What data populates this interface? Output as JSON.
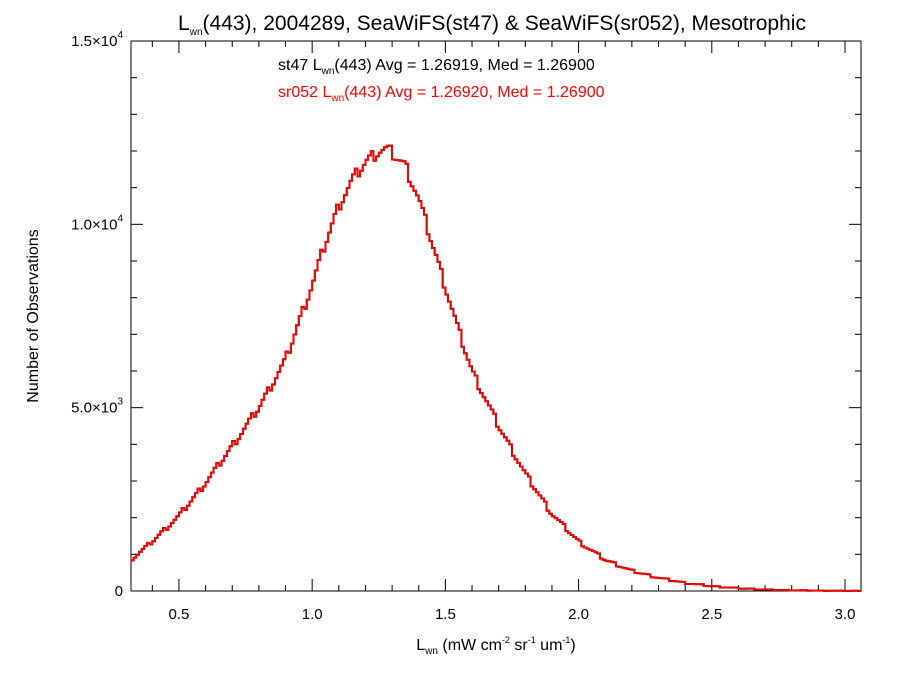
{
  "chart_data": {
    "type": "line",
    "style": "histogram-step",
    "title": {
      "main": "L",
      "main_sub": "wn",
      "rest": "(443), 2004289, SeaWiFS(st47) & SeaWiFS(sr052), Mesotrophic"
    },
    "xlabel": {
      "main": "L",
      "main_sub": "wn",
      "p1": " (mW cm",
      "sup1": "-2",
      "p2": " sr",
      "sup2": "-1",
      "p3": " um",
      "sup3": "-1",
      "p4": ")"
    },
    "ylabel": "Number of Observations",
    "xlim": [
      0.32,
      3.06
    ],
    "ylim": [
      0,
      15000
    ],
    "grid": false,
    "x_ticks": [
      {
        "value": 0.5,
        "label": "0.5"
      },
      {
        "value": 1.0,
        "label": "1.0"
      },
      {
        "value": 1.5,
        "label": "1.5"
      },
      {
        "value": 2.0,
        "label": "2.0"
      },
      {
        "value": 2.5,
        "label": "2.5"
      },
      {
        "value": 3.0,
        "label": "3.0"
      }
    ],
    "y_ticks": [
      {
        "value": 0,
        "mant": "0",
        "exp": ""
      },
      {
        "value": 5000,
        "mant": "5.0×10",
        "exp": "3"
      },
      {
        "value": 10000,
        "mant": "1.0×10",
        "exp": "4"
      },
      {
        "value": 15000,
        "mant": "1.5×10",
        "exp": "4"
      }
    ],
    "annotations": [
      {
        "pre": "st47 L",
        "sub": "wn",
        "post": "(443) Avg = 1.26919, Med = 1.26900",
        "color": "#000000"
      },
      {
        "pre": "sr052 L",
        "sub": "wn",
        "post": "(443) Avg = 1.26920, Med = 1.26900",
        "color": "#ff0000"
      }
    ],
    "series": [
      {
        "color": "#000000",
        "x": [
          0.32,
          0.4,
          0.5,
          0.6,
          0.7,
          0.8,
          0.9,
          1.0,
          1.05,
          1.1,
          1.15,
          1.2,
          1.25,
          1.28,
          1.3,
          1.35,
          1.4,
          1.45,
          1.5,
          1.55,
          1.6,
          1.7,
          1.8,
          1.9,
          2.0,
          2.1,
          2.2,
          2.3,
          2.4,
          2.5,
          2.6,
          2.7,
          2.8,
          2.9,
          3.0,
          3.06
        ],
        "y": [
          850,
          1350,
          2050,
          2950,
          3950,
          5000,
          6300,
          8350,
          9500,
          10500,
          11200,
          11700,
          12000,
          12050,
          11950,
          11600,
          10700,
          9500,
          8300,
          7100,
          6000,
          4500,
          3200,
          2100,
          1350,
          850,
          550,
          360,
          220,
          130,
          75,
          40,
          20,
          10,
          5,
          3
        ]
      },
      {
        "color": "#ff0000",
        "x": [
          0.32,
          0.4,
          0.5,
          0.6,
          0.7,
          0.8,
          0.9,
          1.0,
          1.05,
          1.1,
          1.15,
          1.2,
          1.25,
          1.28,
          1.3,
          1.35,
          1.4,
          1.45,
          1.5,
          1.55,
          1.6,
          1.7,
          1.8,
          1.9,
          2.0,
          2.1,
          2.2,
          2.3,
          2.4,
          2.5,
          2.6,
          2.7,
          2.8,
          2.9,
          3.0,
          3.06
        ],
        "y": [
          850,
          1350,
          2050,
          2950,
          3950,
          5000,
          6300,
          8350,
          9500,
          10500,
          11200,
          11700,
          12000,
          12050,
          11950,
          11600,
          10700,
          9500,
          8300,
          7100,
          6000,
          4500,
          3200,
          2100,
          1350,
          850,
          550,
          360,
          220,
          130,
          75,
          40,
          20,
          10,
          5,
          3
        ]
      }
    ]
  }
}
